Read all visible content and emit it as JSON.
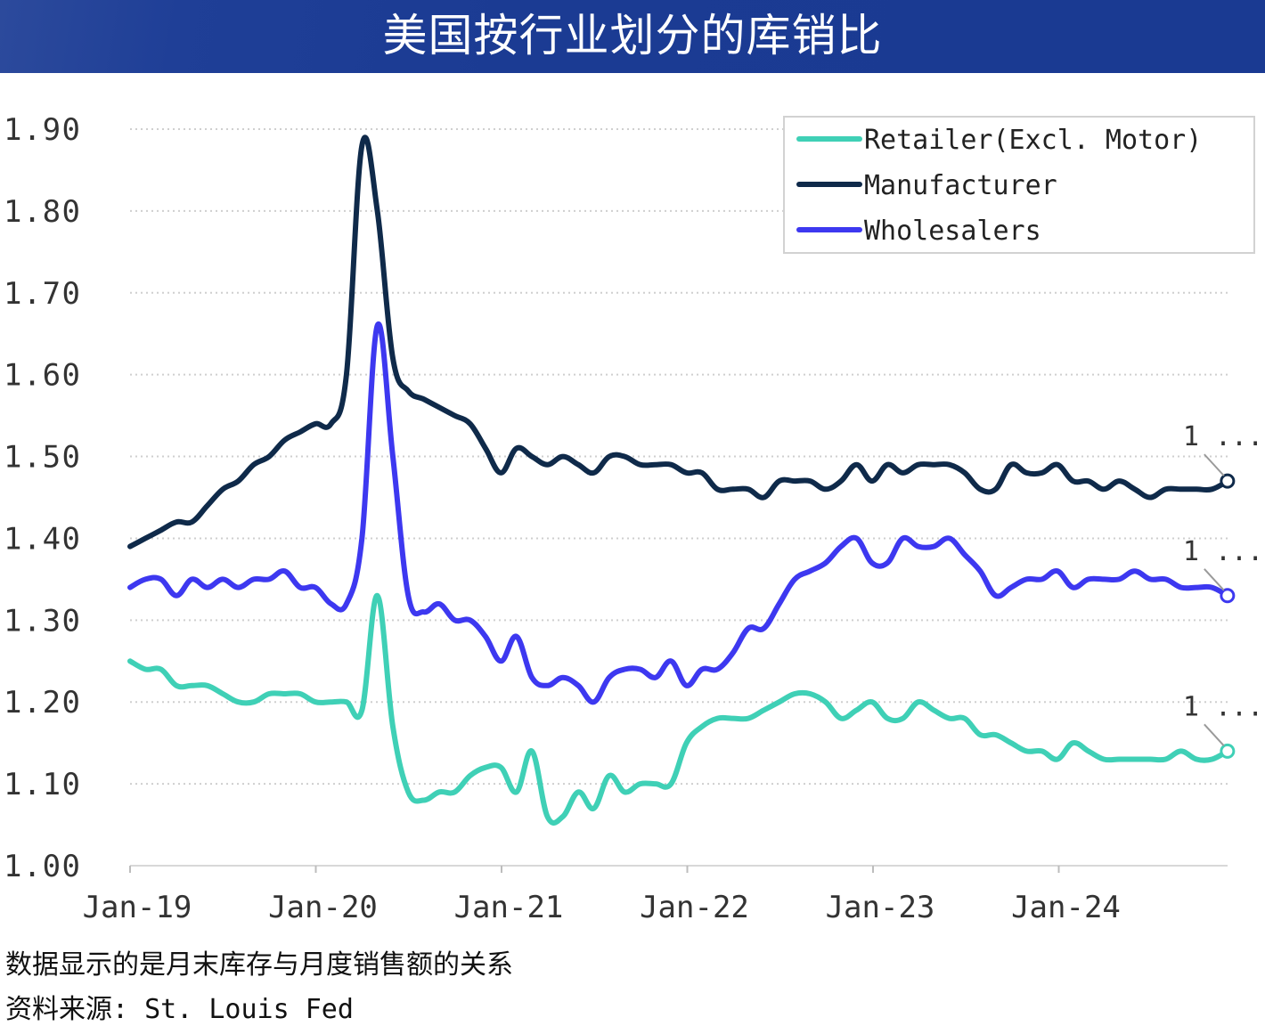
{
  "header": {
    "title": "美国按行业划分的库销比"
  },
  "footnotes": {
    "note": "数据显示的是月末库存与月度销售额的关系",
    "source": "资料来源: St. Louis Fed"
  },
  "colors": {
    "banner": "#1b3b93",
    "retailer": "#3fd0b6",
    "manufacturer": "#0f2a4a",
    "wholesalers": "#3d38f0",
    "grid": "#cfcfcf"
  },
  "chart_data": {
    "type": "line",
    "title": "美国按行业划分的库销比",
    "xlabel": "",
    "ylabel": "",
    "ylim": [
      1.0,
      1.9
    ],
    "yticks": [
      "1.00",
      "1.10",
      "1.20",
      "1.30",
      "1.40",
      "1.50",
      "1.60",
      "1.70",
      "1.80",
      "1.90"
    ],
    "xticks": [
      "Jan-19",
      "Jan-20",
      "Jan-21",
      "Jan-22",
      "Jan-23",
      "Jan-24"
    ],
    "x_start": "Jan-19",
    "x_end": "Nov-24",
    "grid": "horizontal dotted",
    "legend_position": "top-right",
    "end_labels": [
      "1 ...",
      "1 ...",
      "1 ..."
    ],
    "series": [
      {
        "name": "Retailer(Excl. Motor)",
        "color": "#3fd0b6",
        "values": [
          1.25,
          1.24,
          1.24,
          1.22,
          1.22,
          1.22,
          1.21,
          1.2,
          1.2,
          1.21,
          1.21,
          1.21,
          1.2,
          1.2,
          1.2,
          1.19,
          1.33,
          1.17,
          1.09,
          1.08,
          1.09,
          1.09,
          1.11,
          1.12,
          1.12,
          1.09,
          1.14,
          1.06,
          1.06,
          1.09,
          1.07,
          1.11,
          1.09,
          1.1,
          1.1,
          1.1,
          1.15,
          1.17,
          1.18,
          1.18,
          1.18,
          1.19,
          1.2,
          1.21,
          1.21,
          1.2,
          1.18,
          1.19,
          1.2,
          1.18,
          1.18,
          1.2,
          1.19,
          1.18,
          1.18,
          1.16,
          1.16,
          1.15,
          1.14,
          1.14,
          1.13,
          1.15,
          1.14,
          1.13,
          1.13,
          1.13,
          1.13,
          1.13,
          1.14,
          1.13,
          1.13,
          1.14
        ]
      },
      {
        "name": "Manufacturer",
        "color": "#0f2a4a",
        "values": [
          1.39,
          1.4,
          1.41,
          1.42,
          1.42,
          1.44,
          1.46,
          1.47,
          1.49,
          1.5,
          1.52,
          1.53,
          1.54,
          1.54,
          1.6,
          1.88,
          1.8,
          1.62,
          1.58,
          1.57,
          1.56,
          1.55,
          1.54,
          1.51,
          1.48,
          1.51,
          1.5,
          1.49,
          1.5,
          1.49,
          1.48,
          1.5,
          1.5,
          1.49,
          1.49,
          1.49,
          1.48,
          1.48,
          1.46,
          1.46,
          1.46,
          1.45,
          1.47,
          1.47,
          1.47,
          1.46,
          1.47,
          1.49,
          1.47,
          1.49,
          1.48,
          1.49,
          1.49,
          1.49,
          1.48,
          1.46,
          1.46,
          1.49,
          1.48,
          1.48,
          1.49,
          1.47,
          1.47,
          1.46,
          1.47,
          1.46,
          1.45,
          1.46,
          1.46,
          1.46,
          1.46,
          1.47
        ]
      },
      {
        "name": "Wholesalers",
        "color": "#3d38f0",
        "values": [
          1.34,
          1.35,
          1.35,
          1.33,
          1.35,
          1.34,
          1.35,
          1.34,
          1.35,
          1.35,
          1.36,
          1.34,
          1.34,
          1.32,
          1.32,
          1.4,
          1.66,
          1.5,
          1.33,
          1.31,
          1.32,
          1.3,
          1.3,
          1.28,
          1.25,
          1.28,
          1.23,
          1.22,
          1.23,
          1.22,
          1.2,
          1.23,
          1.24,
          1.24,
          1.23,
          1.25,
          1.22,
          1.24,
          1.24,
          1.26,
          1.29,
          1.29,
          1.32,
          1.35,
          1.36,
          1.37,
          1.39,
          1.4,
          1.37,
          1.37,
          1.4,
          1.39,
          1.39,
          1.4,
          1.38,
          1.36,
          1.33,
          1.34,
          1.35,
          1.35,
          1.36,
          1.34,
          1.35,
          1.35,
          1.35,
          1.36,
          1.35,
          1.35,
          1.34,
          1.34,
          1.34,
          1.33
        ]
      }
    ]
  }
}
